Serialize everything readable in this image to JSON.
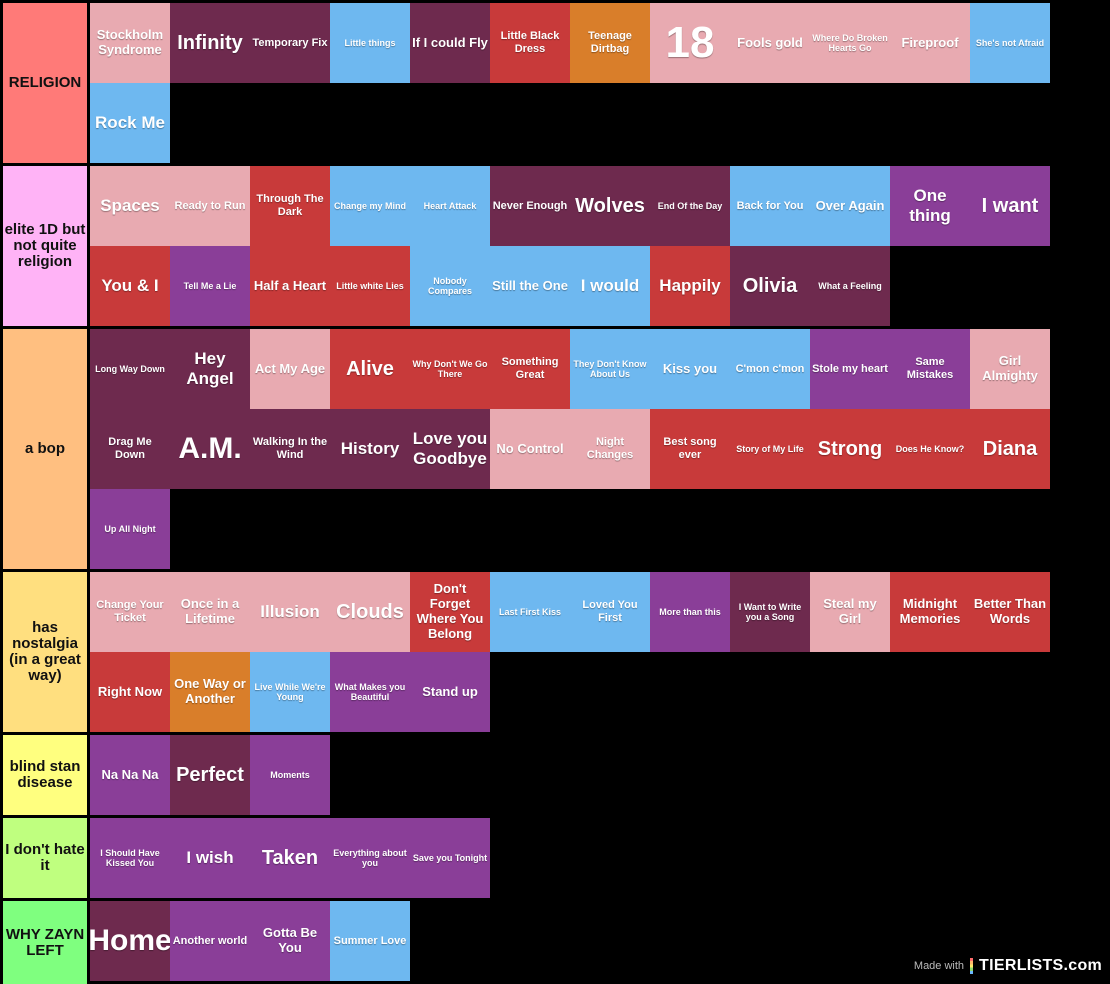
{
  "colors": {
    "pink": "#e8aab1",
    "plum": "#6e2a4e",
    "sky": "#6eb8f0",
    "red": "#c83a3a",
    "orange": "#d97e2a",
    "purple": "#8a3e98",
    "row_bg": "#000000"
  },
  "tiers": [
    {
      "label": "RELIGION",
      "color": "#ff7a78",
      "items": [
        {
          "text": "Stockholm Syndrome",
          "color": "pink"
        },
        {
          "text": "Infinity",
          "color": "plum"
        },
        {
          "text": "Temporary Fix",
          "color": "plum"
        },
        {
          "text": "Little things",
          "color": "sky"
        },
        {
          "text": "If I could Fly",
          "color": "plum"
        },
        {
          "text": "Little Black Dress",
          "color": "red"
        },
        {
          "text": "Teenage Dirtbag",
          "color": "orange"
        },
        {
          "text": "18",
          "color": "pink"
        },
        {
          "text": "Fools gold",
          "color": "pink"
        },
        {
          "text": "Where Do Broken Hearts Go",
          "color": "pink"
        },
        {
          "text": "Fireproof",
          "color": "pink"
        },
        {
          "text": "She's not Afraid",
          "color": "sky"
        },
        {
          "text": "Rock Me",
          "color": "sky"
        }
      ]
    },
    {
      "label": "elite 1D but not quite religion",
      "color": "#ffb3f6",
      "items": [
        {
          "text": "Spaces",
          "color": "pink"
        },
        {
          "text": "Ready to Run",
          "color": "pink"
        },
        {
          "text": "Through The Dark",
          "color": "red"
        },
        {
          "text": "Change my Mind",
          "color": "sky"
        },
        {
          "text": "Heart Attack",
          "color": "sky"
        },
        {
          "text": "Never Enough",
          "color": "plum"
        },
        {
          "text": "Wolves",
          "color": "plum"
        },
        {
          "text": "End Of the Day",
          "color": "plum"
        },
        {
          "text": "Back for You",
          "color": "sky"
        },
        {
          "text": "Over Again",
          "color": "sky"
        },
        {
          "text": "One thing",
          "color": "purple"
        },
        {
          "text": "I want",
          "color": "purple"
        },
        {
          "text": "You & I",
          "color": "red"
        },
        {
          "text": "Tell Me a Lie",
          "color": "purple"
        },
        {
          "text": "Half a Heart",
          "color": "red"
        },
        {
          "text": "Little white Lies",
          "color": "red"
        },
        {
          "text": "Nobody Compares",
          "color": "sky"
        },
        {
          "text": "Still the One",
          "color": "sky"
        },
        {
          "text": "I would",
          "color": "sky"
        },
        {
          "text": "Happily",
          "color": "red"
        },
        {
          "text": "Olivia",
          "color": "plum"
        },
        {
          "text": "What a Feeling",
          "color": "plum"
        }
      ]
    },
    {
      "label": "a bop",
      "color": "#ffbf80",
      "items": [
        {
          "text": "Long Way Down",
          "color": "plum"
        },
        {
          "text": "Hey Angel",
          "color": "plum"
        },
        {
          "text": "Act My Age",
          "color": "pink"
        },
        {
          "text": "Alive",
          "color": "red"
        },
        {
          "text": "Why Don't We Go There",
          "color": "red"
        },
        {
          "text": "Something Great",
          "color": "red"
        },
        {
          "text": "They Don't Know About Us",
          "color": "sky"
        },
        {
          "text": "Kiss you",
          "color": "sky"
        },
        {
          "text": "C'mon c'mon",
          "color": "sky"
        },
        {
          "text": "Stole my heart",
          "color": "purple"
        },
        {
          "text": "Same Mistakes",
          "color": "purple"
        },
        {
          "text": "Girl Almighty",
          "color": "pink"
        },
        {
          "text": "Drag Me Down",
          "color": "plum"
        },
        {
          "text": "A.M.",
          "color": "plum"
        },
        {
          "text": "Walking In the Wind",
          "color": "plum"
        },
        {
          "text": "History",
          "color": "plum"
        },
        {
          "text": "Love you Goodbye",
          "color": "plum"
        },
        {
          "text": "No Control",
          "color": "pink"
        },
        {
          "text": "Night Changes",
          "color": "pink"
        },
        {
          "text": "Best song ever",
          "color": "red"
        },
        {
          "text": "Story of My Life",
          "color": "red"
        },
        {
          "text": "Strong",
          "color": "red"
        },
        {
          "text": "Does He Know?",
          "color": "red"
        },
        {
          "text": "Diana",
          "color": "red"
        },
        {
          "text": "Up All Night",
          "color": "purple"
        }
      ]
    },
    {
      "label": "has nostalgia (in a great way)",
      "color": "#ffdf7f",
      "items": [
        {
          "text": "Change Your Ticket",
          "color": "pink"
        },
        {
          "text": "Once in a Lifetime",
          "color": "pink"
        },
        {
          "text": "Illusion",
          "color": "pink"
        },
        {
          "text": "Clouds",
          "color": "pink"
        },
        {
          "text": "Don't Forget Where You Belong",
          "color": "red"
        },
        {
          "text": "Last First Kiss",
          "color": "sky"
        },
        {
          "text": "Loved You First",
          "color": "sky"
        },
        {
          "text": "More than this",
          "color": "purple"
        },
        {
          "text": "I Want to Write you a Song",
          "color": "plum"
        },
        {
          "text": "Steal my Girl",
          "color": "pink"
        },
        {
          "text": "Midnight Memories",
          "color": "red"
        },
        {
          "text": "Better Than Words",
          "color": "red"
        },
        {
          "text": "Right Now",
          "color": "red"
        },
        {
          "text": "One Way or Another",
          "color": "orange"
        },
        {
          "text": "Live While We're Young",
          "color": "sky"
        },
        {
          "text": "What Makes you Beautiful",
          "color": "purple"
        },
        {
          "text": "Stand up",
          "color": "purple"
        }
      ]
    },
    {
      "label": "blind stan disease",
      "color": "#ffff7f",
      "items": [
        {
          "text": "Na Na Na",
          "color": "purple"
        },
        {
          "text": "Perfect",
          "color": "plum"
        },
        {
          "text": "Moments",
          "color": "purple"
        }
      ]
    },
    {
      "label": "I don't hate it",
      "color": "#bfff7f",
      "items": [
        {
          "text": "I Should Have Kissed You",
          "color": "purple"
        },
        {
          "text": "I wish",
          "color": "purple"
        },
        {
          "text": "Taken",
          "color": "purple"
        },
        {
          "text": "Everything about you",
          "color": "purple"
        },
        {
          "text": "Save you Tonight",
          "color": "purple"
        }
      ]
    },
    {
      "label": "WHY ZAYN LEFT",
      "color": "#7fff7f",
      "items": [
        {
          "text": "Home",
          "color": "plum"
        },
        {
          "text": "Another world",
          "color": "purple"
        },
        {
          "text": "Gotta Be You",
          "color": "purple"
        },
        {
          "text": "Summer Love",
          "color": "sky"
        }
      ]
    }
  ],
  "watermark": {
    "prefix": "Made with",
    "brand": "TIERLISTS.com"
  }
}
